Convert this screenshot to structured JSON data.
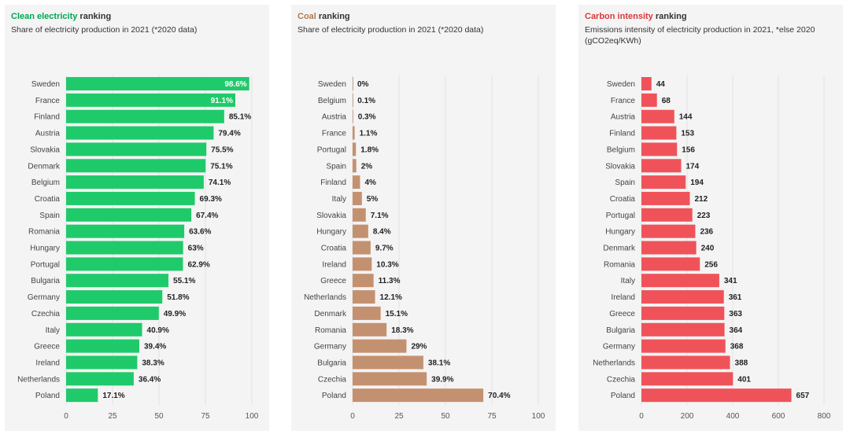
{
  "chart_data": [
    {
      "type": "bar",
      "orientation": "horizontal",
      "title_highlight": "Clean electricity",
      "title_rest": " ranking",
      "subtitle": "Share of electricity production in 2021 (*2020 data)",
      "accent": "#00a651",
      "bar_color": "#1fca6a",
      "xlim": [
        0,
        100
      ],
      "xticks": [
        0,
        25,
        50,
        75,
        100
      ],
      "suffix": "%",
      "grid": true,
      "categories": [
        "Sweden",
        "France",
        "Finland",
        "Austria",
        "Slovakia",
        "Denmark",
        "Belgium",
        "Croatia",
        "Spain",
        "Romania",
        "Hungary",
        "Portugal",
        "Bulgaria",
        "Germany",
        "Czechia",
        "Italy",
        "Greece",
        "Ireland",
        "Netherlands",
        "Poland"
      ],
      "values": [
        98.6,
        91.1,
        85.1,
        79.4,
        75.5,
        75.1,
        74.1,
        69.3,
        67.4,
        63.6,
        63,
        62.9,
        55.1,
        51.8,
        49.9,
        40.9,
        39.4,
        38.3,
        36.4,
        17.1
      ]
    },
    {
      "type": "bar",
      "orientation": "horizontal",
      "title_highlight": "Coal",
      "title_rest": " ranking",
      "subtitle": "Share of electricity production in 2021 (*2020 data)",
      "accent": "#b07a50",
      "bar_color": "#c49170",
      "xlim": [
        0,
        100
      ],
      "xticks": [
        0,
        25,
        50,
        75,
        100
      ],
      "suffix": "%",
      "grid": true,
      "categories": [
        "Sweden",
        "Belgium",
        "Austria",
        "France",
        "Portugal",
        "Spain",
        "Finland",
        "Italy",
        "Slovakia",
        "Hungary",
        "Croatia",
        "Ireland",
        "Greece",
        "Netherlands",
        "Denmark",
        "Romania",
        "Germany",
        "Bulgaria",
        "Czechia",
        "Poland"
      ],
      "values": [
        0,
        0.1,
        0.3,
        1.1,
        1.8,
        2,
        4,
        5,
        7.1,
        8.4,
        9.7,
        10.3,
        11.3,
        12.1,
        15.1,
        18.3,
        29,
        38.1,
        39.9,
        70.4
      ]
    },
    {
      "type": "bar",
      "orientation": "horizontal",
      "title_highlight": "Carbon intensity",
      "title_rest": " ranking",
      "subtitle": "Emissions intensity of electricity production in 2021, *else 2020 (gCO2eq/KWh)",
      "accent": "#d9373d",
      "bar_color": "#ef5359",
      "xlim": [
        0,
        800
      ],
      "xticks": [
        0,
        200,
        400,
        600,
        800
      ],
      "suffix": "",
      "grid": true,
      "categories": [
        "Sweden",
        "France",
        "Austria",
        "Finland",
        "Belgium",
        "Slovakia",
        "Spain",
        "Croatia",
        "Portugal",
        "Hungary",
        "Denmark",
        "Romania",
        "Italy",
        "Ireland",
        "Greece",
        "Bulgaria",
        "Germany",
        "Netherlands",
        "Czechia",
        "Poland"
      ],
      "values": [
        44,
        68,
        144,
        153,
        156,
        174,
        194,
        212,
        223,
        236,
        240,
        256,
        341,
        361,
        363,
        364,
        368,
        388,
        401,
        657
      ]
    }
  ]
}
